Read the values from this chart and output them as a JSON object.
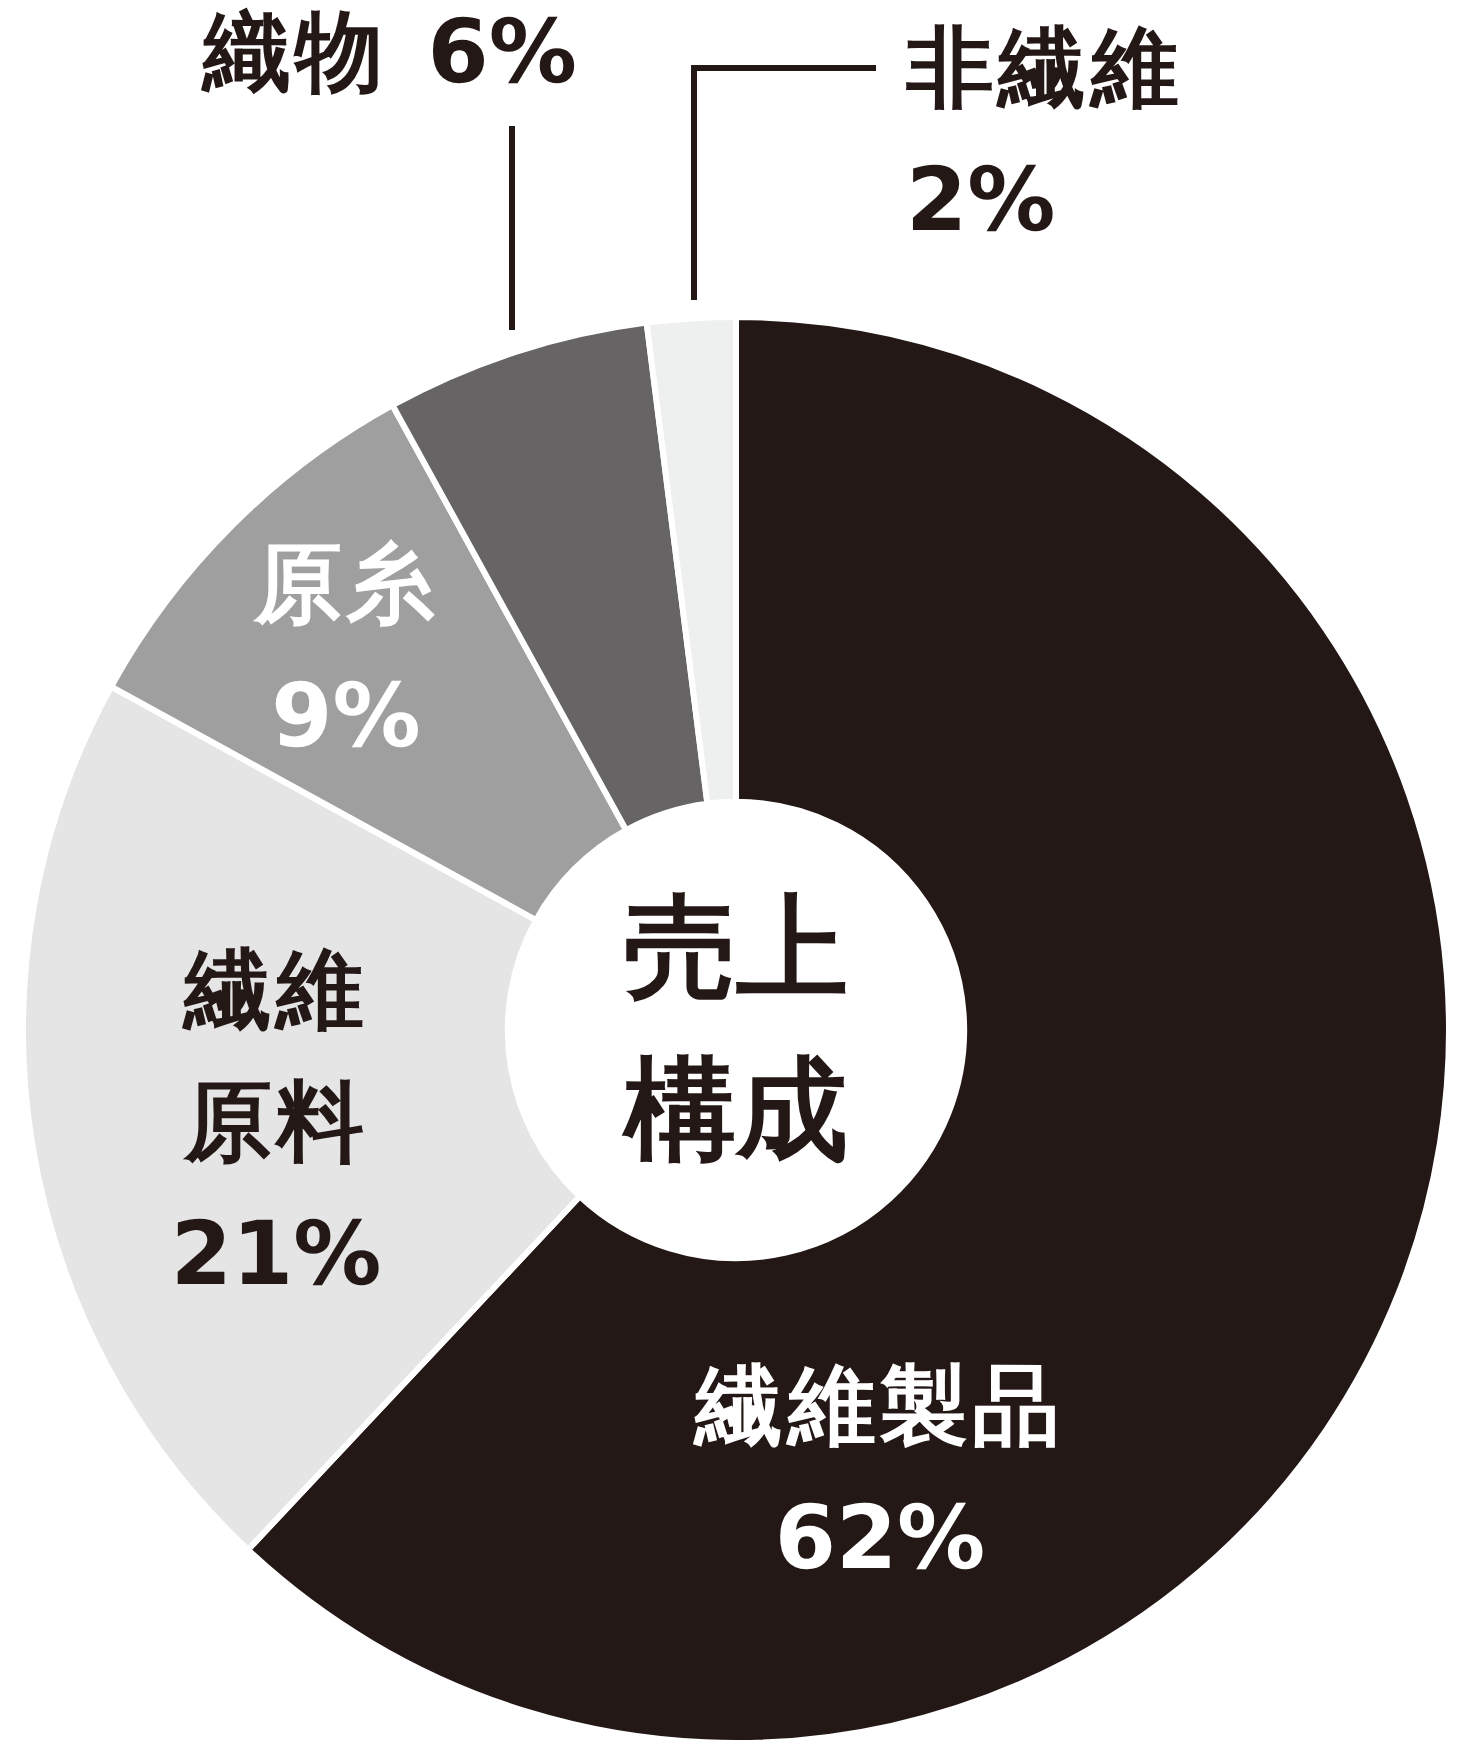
{
  "chart_data": {
    "type": "donut",
    "title": "売上構成",
    "categories": [
      "繊維製品",
      "繊維原料",
      "原糸",
      "織物",
      "非繊維"
    ],
    "values": [
      62,
      21,
      9,
      6,
      2
    ],
    "value_labels": [
      "62%",
      "21%",
      "9%",
      "6%",
      "2%"
    ],
    "colors": [
      "#231815",
      "#e5e5e6",
      "#9f9f9f",
      "#666464",
      "#eeefef"
    ]
  }
}
